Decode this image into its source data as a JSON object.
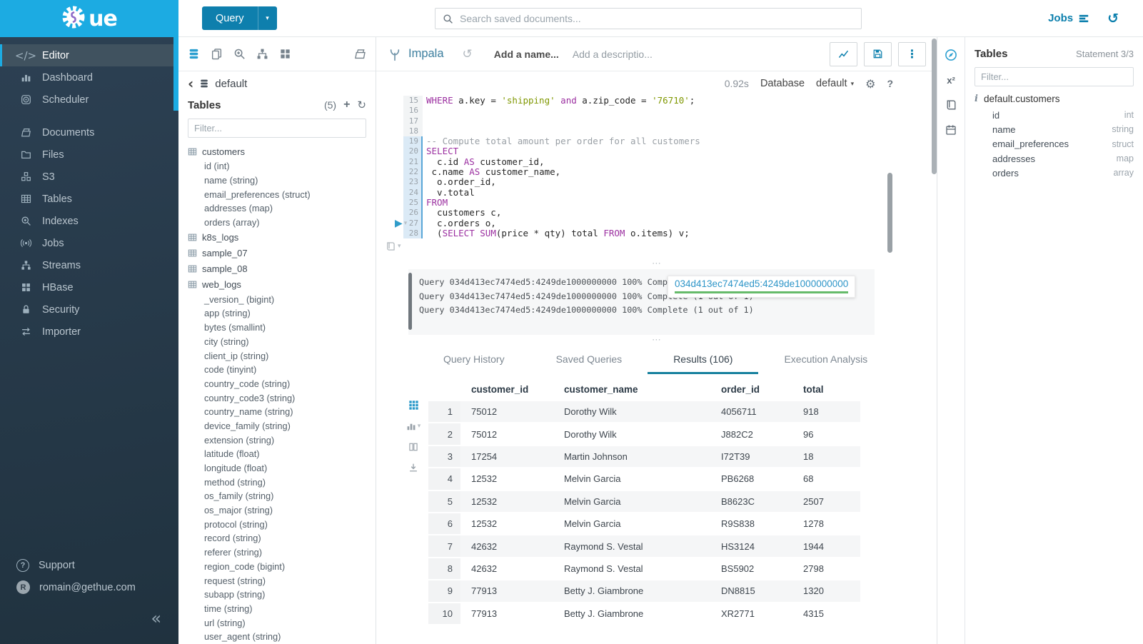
{
  "colors": {
    "cyan": "#1cabe2",
    "btn": "#0e7fad",
    "blue": "#0b7fad",
    "tabline": "#17819e",
    "kw": "#9b2fa0",
    "str": "#7f9700",
    "cm": "#9aa0a6",
    "green": "#66bb6a"
  },
  "icons": {
    "code": "</>",
    "history": "↺",
    "gear": "⚙",
    "kebab": "⋮",
    "caret_down": "▾",
    "back": "‹",
    "plus": "+",
    "refresh": "↻",
    "play": "▶",
    "collapse": "«",
    "handle_dots": "⋯",
    "help": "?",
    "x2": "x²",
    "info": "i"
  },
  "brand": {
    "logo_text": "ue"
  },
  "topbar": {
    "query_button": "Query",
    "search_placeholder": "Search saved documents...",
    "jobs_label": "Jobs"
  },
  "sidebar": {
    "items": [
      {
        "id": "editor",
        "label": "Editor",
        "icon": "code",
        "active": true
      },
      {
        "id": "dashboard",
        "label": "Dashboard",
        "icon": "barchart"
      },
      {
        "id": "scheduler",
        "label": "Scheduler",
        "icon": "schedule"
      },
      {
        "id": "documents",
        "label": "Documents",
        "icon": "docsfolder",
        "gap": true
      },
      {
        "id": "files",
        "label": "Files",
        "icon": "folder"
      },
      {
        "id": "s3",
        "label": "S3",
        "icon": "cubes"
      },
      {
        "id": "tables",
        "label": "Tables",
        "icon": "tablegrid"
      },
      {
        "id": "indexes",
        "label": "Indexes",
        "icon": "zoomplus"
      },
      {
        "id": "jobs",
        "label": "Jobs",
        "icon": "broadcast"
      },
      {
        "id": "streams",
        "label": "Streams",
        "icon": "sitemap"
      },
      {
        "id": "hbase",
        "label": "HBase",
        "icon": "grid4"
      },
      {
        "id": "security",
        "label": "Security",
        "icon": "lock"
      },
      {
        "id": "importer",
        "label": "Importer",
        "icon": "arrows"
      }
    ],
    "support_label": "Support",
    "user_email": "romain@gethue.com",
    "user_initial": "R"
  },
  "assist": {
    "breadcrumb_db": "default",
    "tables_label": "Tables",
    "tables_count": "(5)",
    "filter_placeholder": "Filter...",
    "tree": [
      {
        "table": "customers",
        "columns": [
          [
            "id",
            "int"
          ],
          [
            "name",
            "string"
          ],
          [
            "email_preferences",
            "struct"
          ],
          [
            "addresses",
            "map"
          ],
          [
            "orders",
            "array"
          ]
        ]
      },
      {
        "table": "k8s_logs",
        "columns": []
      },
      {
        "table": "sample_07",
        "columns": []
      },
      {
        "table": "sample_08",
        "columns": []
      },
      {
        "table": "web_logs",
        "columns": [
          [
            "_version_",
            "bigint"
          ],
          [
            "app",
            "string"
          ],
          [
            "bytes",
            "smallint"
          ],
          [
            "city",
            "string"
          ],
          [
            "client_ip",
            "string"
          ],
          [
            "code",
            "tinyint"
          ],
          [
            "country_code",
            "string"
          ],
          [
            "country_code3",
            "string"
          ],
          [
            "country_name",
            "string"
          ],
          [
            "device_family",
            "string"
          ],
          [
            "extension",
            "string"
          ],
          [
            "latitude",
            "float"
          ],
          [
            "longitude",
            "float"
          ],
          [
            "method",
            "string"
          ],
          [
            "os_family",
            "string"
          ],
          [
            "os_major",
            "string"
          ],
          [
            "protocol",
            "string"
          ],
          [
            "record",
            "string"
          ],
          [
            "referer",
            "string"
          ],
          [
            "region_code",
            "bigint"
          ],
          [
            "request",
            "string"
          ],
          [
            "subapp",
            "string"
          ],
          [
            "time",
            "string"
          ],
          [
            "url",
            "string"
          ],
          [
            "user_agent",
            "string"
          ]
        ]
      }
    ]
  },
  "editor": {
    "engine": "Impala",
    "name_placeholder": "Add a name...",
    "description_placeholder": "Add a descriptio...",
    "exec_time": "0.92s",
    "database_label": "Database",
    "database_value": "default",
    "lines": [
      {
        "n": 15,
        "hl": false,
        "tokens": [
          [
            "k",
            "WHERE"
          ],
          [
            "p",
            " a.key = "
          ],
          [
            "s",
            "'shipping'"
          ],
          [
            "p",
            " "
          ],
          [
            "k",
            "and"
          ],
          [
            "p",
            " a.zip_code = "
          ],
          [
            "s",
            "'76710'"
          ],
          [
            "p",
            ";"
          ]
        ]
      },
      {
        "n": 16,
        "hl": false,
        "tokens": []
      },
      {
        "n": 17,
        "hl": false,
        "tokens": []
      },
      {
        "n": 18,
        "hl": false,
        "tokens": []
      },
      {
        "n": 19,
        "hl": true,
        "tokens": [
          [
            "c",
            "-- Compute total amount per order for all customers"
          ]
        ]
      },
      {
        "n": 20,
        "hl": true,
        "tokens": [
          [
            "k",
            "SELECT"
          ]
        ]
      },
      {
        "n": 21,
        "hl": true,
        "tokens": [
          [
            "p",
            "  c.id "
          ],
          [
            "k",
            "AS"
          ],
          [
            "p",
            " customer_id,"
          ]
        ]
      },
      {
        "n": 22,
        "hl": true,
        "tokens": [
          [
            "p",
            " c.name "
          ],
          [
            "k",
            "AS"
          ],
          [
            "p",
            " customer_name,"
          ]
        ]
      },
      {
        "n": 23,
        "hl": true,
        "tokens": [
          [
            "p",
            "  o.order_id,"
          ]
        ]
      },
      {
        "n": 24,
        "hl": true,
        "tokens": [
          [
            "p",
            "  v.total"
          ]
        ]
      },
      {
        "n": 25,
        "hl": true,
        "tokens": [
          [
            "k",
            "FROM"
          ]
        ]
      },
      {
        "n": 26,
        "hl": true,
        "tokens": [
          [
            "p",
            "  customers c,"
          ]
        ]
      },
      {
        "n": 27,
        "hl": true,
        "tokens": [
          [
            "p",
            "  c.orders o,"
          ]
        ]
      },
      {
        "n": 28,
        "hl": true,
        "tokens": [
          [
            "p",
            "  ("
          ],
          [
            "k",
            "SELECT"
          ],
          [
            "p",
            " "
          ],
          [
            "k",
            "SUM"
          ],
          [
            "p",
            "(price * qty) total "
          ],
          [
            "k",
            "FROM"
          ],
          [
            "p",
            " o.items) v;"
          ]
        ]
      }
    ]
  },
  "log": {
    "lines": [
      "Query 034d413ec7474ed5:4249de1000000000 100% Complete (1 out of 1)",
      "Query 034d413ec7474ed5:4249de1000000000 100% Complete (1 out of 1)",
      "Query 034d413ec7474ed5:4249de1000000000 100% Complete (1 out of 1)"
    ],
    "popover_id": "034d413ec7474ed5:4249de1000000000"
  },
  "tabs": [
    {
      "label": "Query History",
      "active": false
    },
    {
      "label": "Saved Queries",
      "active": false
    },
    {
      "label": "Results (106)",
      "active": true
    },
    {
      "label": "Execution Analysis",
      "active": false
    }
  ],
  "results": {
    "headers": [
      "customer_id",
      "customer_name",
      "order_id",
      "total"
    ],
    "rows": [
      [
        "1",
        "75012",
        "Dorothy Wilk",
        "4056711",
        "918"
      ],
      [
        "2",
        "75012",
        "Dorothy Wilk",
        "J882C2",
        "96"
      ],
      [
        "3",
        "17254",
        "Martin Johnson",
        "I72T39",
        "18"
      ],
      [
        "4",
        "12532",
        "Melvin Garcia",
        "PB6268",
        "68"
      ],
      [
        "5",
        "12532",
        "Melvin Garcia",
        "B8623C",
        "2507"
      ],
      [
        "6",
        "12532",
        "Melvin Garcia",
        "R9S838",
        "1278"
      ],
      [
        "7",
        "42632",
        "Raymond S. Vestal",
        "HS3124",
        "1944"
      ],
      [
        "8",
        "42632",
        "Raymond S. Vestal",
        "BS5902",
        "2798"
      ],
      [
        "9",
        "77913",
        "Betty J. Giambrone",
        "DN8815",
        "1320"
      ],
      [
        "10",
        "77913",
        "Betty J. Giambrone",
        "XR2771",
        "4315"
      ]
    ]
  },
  "right_panel": {
    "title": "Tables",
    "statement": "Statement 3/3",
    "filter_placeholder": "Filter...",
    "table_name": "default.customers",
    "columns": [
      {
        "name": "id",
        "type": "int"
      },
      {
        "name": "name",
        "type": "string"
      },
      {
        "name": "email_preferences",
        "type": "struct"
      },
      {
        "name": "addresses",
        "type": "map"
      },
      {
        "name": "orders",
        "type": "array"
      }
    ]
  }
}
